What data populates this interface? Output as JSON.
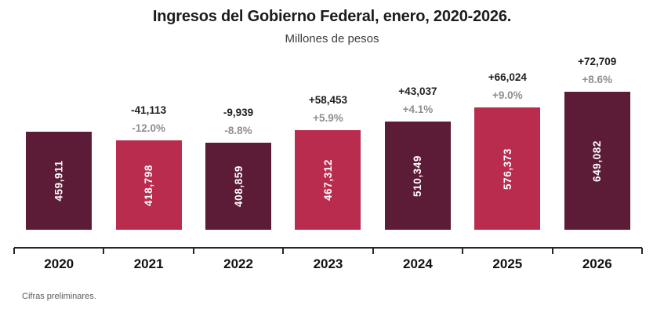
{
  "header": {
    "title": "Ingresos del Gobierno Federal, enero, 2020-2026.",
    "subtitle": "Millones de pesos"
  },
  "footnote": "Cifras preliminares.",
  "chart_data": {
    "type": "bar",
    "title": "Ingresos del Gobierno Federal, enero, 2020-2026.",
    "subtitle": "Millones de pesos",
    "xlabel": "",
    "ylabel": "Millones de pesos",
    "categories": [
      "2020",
      "2021",
      "2022",
      "2023",
      "2024",
      "2025",
      "2026"
    ],
    "values": [
      459911,
      418798,
      408859,
      467312,
      510349,
      576373,
      649082
    ],
    "value_labels": [
      "459,911",
      "418,798",
      "408,859",
      "467,312",
      "510,349",
      "576,373",
      "649,082"
    ],
    "change_labels": [
      "",
      "-41,113",
      "-9,939",
      "+58,453",
      "+43,037",
      "+66,024",
      "+72,709"
    ],
    "pct_change_labels": [
      "",
      "-12.0%",
      "-8.8%",
      "+5.9%",
      "+4.1%",
      "+9.0%",
      "+8.6%"
    ],
    "bar_colors": [
      "#5C1B36",
      "#B92C4E",
      "#5C1B36",
      "#B92C4E",
      "#5C1B36",
      "#B92C4E",
      "#5C1B36"
    ],
    "colors": {
      "dark_bar": "#5C1B36",
      "light_bar": "#B92C4E",
      "change_label": "#1f1f1f",
      "pct_label": "#8f8f8f",
      "bar_value_text": "#ffffff",
      "axis": "#262626"
    },
    "ylim": [
      0,
      650000
    ],
    "grid": false,
    "legend": false,
    "y_axis_visible": false,
    "value_label_rotation": -90
  }
}
